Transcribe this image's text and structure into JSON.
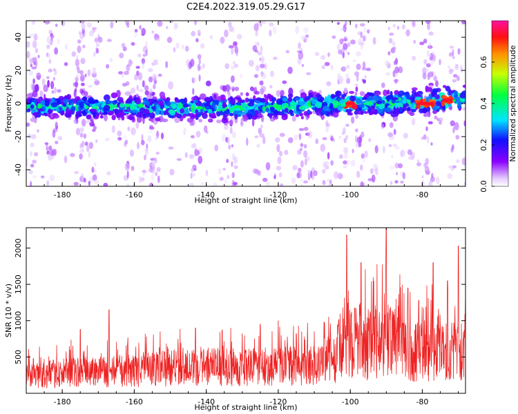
{
  "title": "C2E4.2022.319.05.29.G17",
  "chart_data": [
    {
      "type": "heatmap",
      "xlabel": "Height of straight line (km)",
      "ylabel": "Frequency (Hz)",
      "xlim": [
        -190,
        -68
      ],
      "ylim": [
        -50,
        50
      ],
      "xticks": [
        -180,
        -160,
        -140,
        -120,
        -100,
        -80
      ],
      "yticks": [
        -40,
        -20,
        0,
        20,
        40
      ],
      "xtick_labels": [
        "-180",
        "-160",
        "-140",
        "-120",
        "-100",
        "-80"
      ],
      "ytick_labels": [
        "-40",
        "-20",
        "0",
        "20",
        "40"
      ],
      "colorbar": {
        "label": "Normalized spectral amplitude",
        "range": [
          0,
          0.8
        ],
        "ticks": [
          0.0,
          0.2,
          0.4,
          0.6
        ],
        "tick_labels": [
          "0.0",
          "0.2",
          "0.4",
          "0.6"
        ],
        "colormap": "rainbow (white-lavender, purple, blue, cyan, green, yellow, orange, red, magenta)"
      },
      "band": {
        "description": "Strong near-zero-frequency band spanning full height range",
        "center_freq": [
          [
            -190,
            -2
          ],
          [
            -180,
            -2
          ],
          [
            -160,
            -2
          ],
          [
            -140,
            -3
          ],
          [
            -120,
            -2
          ],
          [
            -100,
            0
          ],
          [
            -90,
            0
          ],
          [
            -80,
            1
          ],
          [
            -70,
            3
          ]
        ],
        "half_width_hz": 5,
        "peak_amplitude": 0.8,
        "hot_spots": [
          [
            -100,
            0
          ],
          [
            -80,
            0
          ],
          [
            -78,
            0
          ],
          [
            -73,
            2
          ]
        ]
      }
    },
    {
      "type": "line",
      "color": "#ee2222",
      "xlabel": "Height of straight line (km)",
      "ylabel": "SNR (10 * v/v)",
      "xlim": [
        -190,
        -68
      ],
      "ylim": [
        0,
        2280
      ],
      "xticks": [
        -180,
        -160,
        -140,
        -120,
        -100,
        -80
      ],
      "yticks": [
        500,
        1000,
        1500,
        2000
      ],
      "xtick_labels": [
        "-180",
        "-160",
        "-140",
        "-120",
        "-100",
        "-80"
      ],
      "ytick_labels": [
        "500",
        "1000",
        "1500",
        "2000"
      ],
      "envelope": [
        [
          -190,
          250
        ],
        [
          -180,
          300
        ],
        [
          -170,
          330
        ],
        [
          -160,
          330
        ],
        [
          -150,
          380
        ],
        [
          -140,
          400
        ],
        [
          -130,
          380
        ],
        [
          -120,
          400
        ],
        [
          -110,
          420
        ],
        [
          -104,
          550
        ],
        [
          -101,
          900
        ],
        [
          -95,
          700
        ],
        [
          -90,
          800
        ],
        [
          -85,
          650
        ],
        [
          -80,
          600
        ],
        [
          -75,
          700
        ],
        [
          -70,
          650
        ],
        [
          -68,
          700
        ]
      ],
      "peaks": [
        [
          -188,
          480
        ],
        [
          -175,
          880
        ],
        [
          -167,
          1150
        ],
        [
          -143,
          900
        ],
        [
          -130,
          820
        ],
        [
          -125,
          950
        ],
        [
          -120,
          1000
        ],
        [
          -115,
          820
        ],
        [
          -110,
          850
        ],
        [
          -106,
          1050
        ],
        [
          -101,
          2180
        ],
        [
          -97,
          1800
        ],
        [
          -95,
          1150
        ],
        [
          -90,
          2270
        ],
        [
          -84,
          1450
        ],
        [
          -81,
          1280
        ],
        [
          -77,
          1800
        ],
        [
          -73,
          1550
        ],
        [
          -70,
          2030
        ],
        [
          -68,
          1350
        ]
      ],
      "x_min": -190,
      "x_max": -68
    }
  ]
}
